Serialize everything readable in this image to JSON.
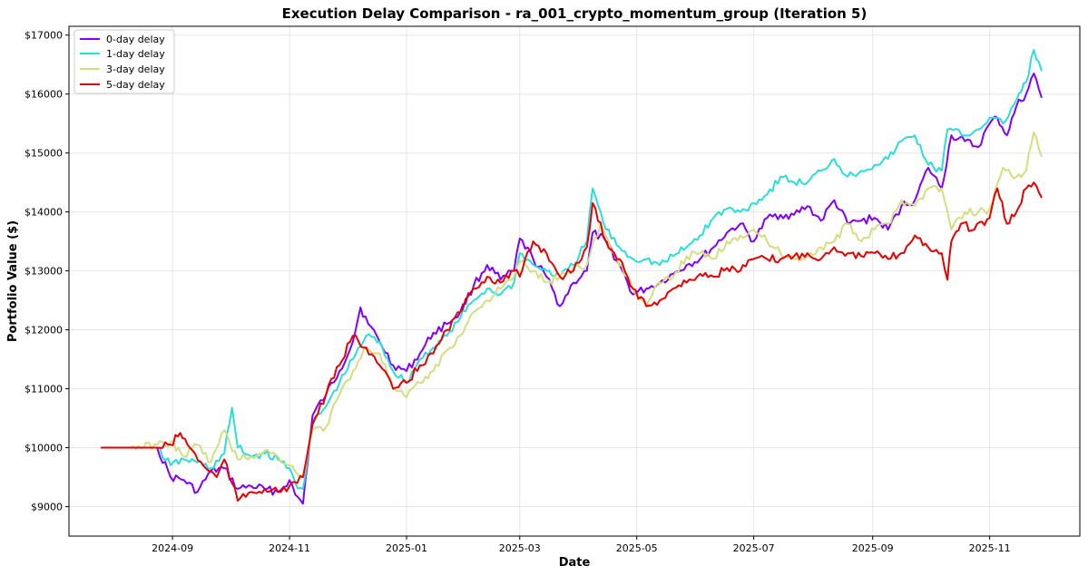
{
  "chart_data": {
    "type": "line",
    "title": "Execution Delay Comparison - ra_001_crypto_momentum_group (Iteration 5)",
    "xlabel": "Date",
    "ylabel": "Portfolio Value ($)",
    "x_range": [
      "2024-07-09",
      "2025-12-18"
    ],
    "ylim": [
      8500,
      17150
    ],
    "x_tick_labels": [
      "2024-09",
      "2024-11",
      "2025-01",
      "2025-03",
      "2025-05",
      "2025-07",
      "2025-09",
      "2025-11"
    ],
    "x_tick_dates": [
      "2024-09-01",
      "2024-11-01",
      "2025-01-01",
      "2025-03-01",
      "2025-05-01",
      "2025-07-01",
      "2025-09-01",
      "2025-11-01"
    ],
    "y_tick_values": [
      9000,
      10000,
      11000,
      12000,
      13000,
      14000,
      15000,
      16000,
      17000
    ],
    "y_tick_labels": [
      "$9000",
      "$10000",
      "$11000",
      "$12000",
      "$13000",
      "$14000",
      "$15000",
      "$16000",
      "$17000"
    ],
    "grid": true,
    "legend_position": "top-left",
    "series": [
      {
        "name": "0-day delay",
        "color": "#7f00ff",
        "x": [
          "2024-07-26",
          "2024-08-10",
          "2024-08-24",
          "2024-08-31",
          "2024-09-07",
          "2024-09-14",
          "2024-09-21",
          "2024-09-28",
          "2024-10-05",
          "2024-10-12",
          "2024-10-19",
          "2024-10-26",
          "2024-11-01",
          "2024-11-04",
          "2024-11-08",
          "2024-11-13",
          "2024-11-20",
          "2024-11-27",
          "2024-12-04",
          "2024-12-08",
          "2024-12-12",
          "2024-12-18",
          "2024-12-25",
          "2025-01-01",
          "2025-01-08",
          "2025-01-15",
          "2025-01-22",
          "2025-01-29",
          "2025-02-05",
          "2025-02-12",
          "2025-02-19",
          "2025-02-26",
          "2025-03-01",
          "2025-03-08",
          "2025-03-15",
          "2025-03-22",
          "2025-03-29",
          "2025-04-05",
          "2025-04-08",
          "2025-04-15",
          "2025-04-22",
          "2025-04-29",
          "2025-05-06",
          "2025-05-13",
          "2025-05-20",
          "2025-05-27",
          "2025-06-03",
          "2025-06-10",
          "2025-06-17",
          "2025-06-24",
          "2025-07-01",
          "2025-07-08",
          "2025-07-15",
          "2025-07-22",
          "2025-07-29",
          "2025-08-05",
          "2025-08-12",
          "2025-08-19",
          "2025-08-26",
          "2025-09-02",
          "2025-09-09",
          "2025-09-16",
          "2025-09-23",
          "2025-09-30",
          "2025-10-07",
          "2025-10-12",
          "2025-10-19",
          "2025-10-26",
          "2025-11-01",
          "2025-11-05",
          "2025-11-10",
          "2025-11-15",
          "2025-11-20",
          "2025-11-24",
          "2025-11-28"
        ],
        "values": [
          10000,
          10000,
          10000,
          9500,
          9450,
          9250,
          9600,
          9650,
          9300,
          9350,
          9300,
          9250,
          9450,
          9200,
          9050,
          10550,
          10900,
          11300,
          11800,
          12380,
          12100,
          11800,
          11400,
          11300,
          11600,
          11950,
          12100,
          12300,
          12750,
          13100,
          12850,
          13000,
          13550,
          13200,
          12900,
          12400,
          12800,
          13000,
          13650,
          13500,
          13100,
          12600,
          12700,
          12800,
          12950,
          13100,
          13200,
          13400,
          13650,
          13800,
          13500,
          13900,
          13950,
          13950,
          14100,
          13850,
          14200,
          13800,
          13850,
          13900,
          13700,
          14100,
          14200,
          14750,
          14400,
          15300,
          15200,
          15100,
          15500,
          15600,
          15300,
          15800,
          16000,
          16350,
          15950
        ]
      },
      {
        "name": "1-day delay",
        "color": "#2adddd",
        "x": [
          "2024-07-26",
          "2024-08-10",
          "2024-08-24",
          "2024-08-31",
          "2024-09-07",
          "2024-09-14",
          "2024-09-21",
          "2024-09-28",
          "2024-10-02",
          "2024-10-05",
          "2024-10-12",
          "2024-10-19",
          "2024-10-26",
          "2024-11-01",
          "2024-11-04",
          "2024-11-08",
          "2024-11-13",
          "2024-11-20",
          "2024-11-27",
          "2024-12-04",
          "2024-12-11",
          "2024-12-18",
          "2024-12-25",
          "2025-01-01",
          "2025-01-08",
          "2025-01-15",
          "2025-01-22",
          "2025-01-29",
          "2025-02-05",
          "2025-02-12",
          "2025-02-19",
          "2025-02-26",
          "2025-03-01",
          "2025-03-08",
          "2025-03-15",
          "2025-03-22",
          "2025-03-29",
          "2025-04-05",
          "2025-04-08",
          "2025-04-15",
          "2025-04-22",
          "2025-04-29",
          "2025-05-06",
          "2025-05-13",
          "2025-05-20",
          "2025-05-27",
          "2025-06-03",
          "2025-06-10",
          "2025-06-17",
          "2025-06-24",
          "2025-07-01",
          "2025-07-08",
          "2025-07-15",
          "2025-07-22",
          "2025-07-29",
          "2025-08-05",
          "2025-08-12",
          "2025-08-19",
          "2025-08-26",
          "2025-09-02",
          "2025-09-09",
          "2025-09-16",
          "2025-09-23",
          "2025-09-30",
          "2025-10-07",
          "2025-10-10",
          "2025-10-19",
          "2025-10-26",
          "2025-11-01",
          "2025-11-08",
          "2025-11-15",
          "2025-11-20",
          "2025-11-24",
          "2025-11-28"
        ],
        "values": [
          10000,
          10000,
          10000,
          9700,
          9800,
          9750,
          9650,
          9900,
          10680,
          10000,
          9850,
          9900,
          9800,
          9650,
          9400,
          9300,
          10400,
          10700,
          11100,
          11500,
          11900,
          11800,
          11300,
          11100,
          11500,
          11700,
          11900,
          12200,
          12500,
          12700,
          12600,
          12800,
          13300,
          13100,
          13000,
          12900,
          13100,
          13500,
          14400,
          13700,
          13400,
          13200,
          13200,
          13100,
          13250,
          13400,
          13600,
          13900,
          14050,
          14000,
          14150,
          14300,
          14600,
          14500,
          14500,
          14700,
          14900,
          14600,
          14700,
          14800,
          14900,
          15200,
          15300,
          14800,
          14700,
          15400,
          15300,
          15400,
          15600,
          15500,
          15900,
          16200,
          16750,
          16400
        ]
      },
      {
        "name": "3-day delay",
        "color": "#d4dd80",
        "x": [
          "2024-07-26",
          "2024-08-10",
          "2024-08-24",
          "2024-08-31",
          "2024-09-07",
          "2024-09-14",
          "2024-09-21",
          "2024-09-28",
          "2024-10-05",
          "2024-10-12",
          "2024-10-19",
          "2024-10-26",
          "2024-11-01",
          "2024-11-04",
          "2024-11-08",
          "2024-11-13",
          "2024-11-20",
          "2024-11-27",
          "2024-12-04",
          "2024-12-11",
          "2024-12-18",
          "2024-12-25",
          "2025-01-01",
          "2025-01-08",
          "2025-01-15",
          "2025-01-22",
          "2025-01-29",
          "2025-02-05",
          "2025-02-12",
          "2025-02-19",
          "2025-02-26",
          "2025-03-01",
          "2025-03-08",
          "2025-03-15",
          "2025-03-22",
          "2025-03-29",
          "2025-04-05",
          "2025-04-12",
          "2025-04-19",
          "2025-04-26",
          "2025-05-01",
          "2025-05-06",
          "2025-05-13",
          "2025-05-20",
          "2025-05-27",
          "2025-06-03",
          "2025-06-10",
          "2025-06-17",
          "2025-06-24",
          "2025-07-01",
          "2025-07-08",
          "2025-07-15",
          "2025-07-22",
          "2025-07-29",
          "2025-08-05",
          "2025-08-12",
          "2025-08-19",
          "2025-08-26",
          "2025-09-02",
          "2025-09-09",
          "2025-09-16",
          "2025-09-23",
          "2025-09-30",
          "2025-10-07",
          "2025-10-12",
          "2025-10-19",
          "2025-10-26",
          "2025-11-01",
          "2025-11-08",
          "2025-11-15",
          "2025-11-20",
          "2025-11-24",
          "2025-11-28"
        ],
        "values": [
          10000,
          10000,
          10050,
          10100,
          9850,
          10050,
          9750,
          10300,
          9800,
          9850,
          9950,
          9850,
          9700,
          9600,
          9500,
          10300,
          10350,
          10900,
          11300,
          11700,
          11600,
          11000,
          10850,
          11100,
          11300,
          11650,
          11900,
          12300,
          12500,
          12700,
          12900,
          13150,
          13000,
          12800,
          12900,
          13050,
          13100,
          13800,
          13300,
          12900,
          12600,
          12400,
          12800,
          12900,
          13250,
          13300,
          13200,
          13500,
          13600,
          13700,
          13500,
          13300,
          13200,
          13250,
          13400,
          13500,
          13800,
          13500,
          13700,
          13800,
          14200,
          14100,
          14400,
          14400,
          13700,
          14000,
          14000,
          14050,
          14750,
          14600,
          14700,
          15350,
          14950
        ]
      },
      {
        "name": "5-day delay",
        "color": "#e60000",
        "x": [
          "2024-07-26",
          "2024-08-10",
          "2024-08-24",
          "2024-08-31",
          "2024-09-05",
          "2024-09-10",
          "2024-09-17",
          "2024-09-24",
          "2024-09-28",
          "2024-10-02",
          "2024-10-05",
          "2024-10-12",
          "2024-10-19",
          "2024-10-26",
          "2024-11-01",
          "2024-11-05",
          "2024-11-08",
          "2024-11-13",
          "2024-11-20",
          "2024-11-27",
          "2024-12-04",
          "2024-12-11",
          "2024-12-18",
          "2024-12-25",
          "2025-01-01",
          "2025-01-08",
          "2025-01-15",
          "2025-01-22",
          "2025-01-29",
          "2025-02-05",
          "2025-02-12",
          "2025-02-19",
          "2025-02-26",
          "2025-03-01",
          "2025-03-08",
          "2025-03-15",
          "2025-03-22",
          "2025-03-29",
          "2025-04-05",
          "2025-04-08",
          "2025-04-15",
          "2025-04-22",
          "2025-04-29",
          "2025-05-06",
          "2025-05-13",
          "2025-05-20",
          "2025-05-27",
          "2025-06-03",
          "2025-06-10",
          "2025-06-17",
          "2025-06-24",
          "2025-07-01",
          "2025-07-08",
          "2025-07-15",
          "2025-07-22",
          "2025-07-29",
          "2025-08-05",
          "2025-08-12",
          "2025-08-19",
          "2025-08-26",
          "2025-09-02",
          "2025-09-09",
          "2025-09-16",
          "2025-09-23",
          "2025-09-30",
          "2025-10-07",
          "2025-10-10",
          "2025-10-12",
          "2025-10-17",
          "2025-10-24",
          "2025-11-01",
          "2025-11-05",
          "2025-11-10",
          "2025-11-15",
          "2025-11-20",
          "2025-11-24",
          "2025-11-28"
        ],
        "values": [
          10000,
          10000,
          10000,
          10050,
          10250,
          10000,
          9700,
          9500,
          9800,
          9400,
          9100,
          9250,
          9300,
          9250,
          9350,
          9400,
          9500,
          10400,
          10900,
          11400,
          11900,
          11700,
          11400,
          11000,
          11100,
          11400,
          11600,
          12000,
          12300,
          12700,
          12900,
          12800,
          13000,
          12900,
          13500,
          13300,
          12900,
          13000,
          13400,
          14150,
          13500,
          13200,
          12700,
          12400,
          12500,
          12700,
          12800,
          12950,
          12900,
          13050,
          13000,
          13200,
          13200,
          13200,
          13250,
          13300,
          13200,
          13400,
          13300,
          13250,
          13300,
          13200,
          13300,
          13600,
          13400,
          13300,
          12850,
          13500,
          13800,
          13700,
          13900,
          14400,
          13800,
          14000,
          14400,
          14500,
          14250
        ]
      }
    ]
  }
}
